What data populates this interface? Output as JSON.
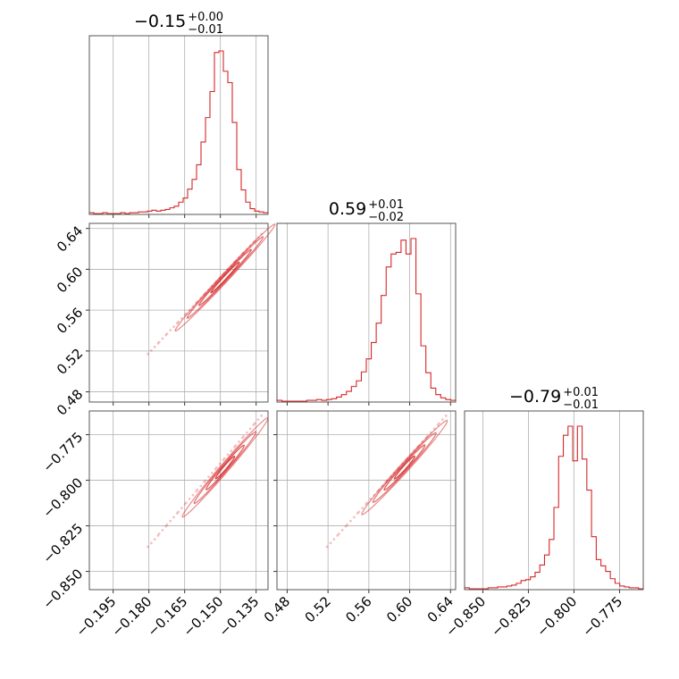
{
  "chart_data": {
    "type": "corner",
    "color": "#d62728",
    "grid": true,
    "parameters": [
      {
        "title": {
          "value": "−0.15",
          "plus": "+0.00",
          "minus": "−0.01"
        },
        "range": [
          -0.205,
          -0.13
        ],
        "ticks": [
          -0.195,
          -0.18,
          -0.165,
          -0.15,
          -0.135
        ],
        "tick_labels": [
          "−0.195",
          "−0.180",
          "−0.165",
          "−0.150",
          "−0.135"
        ],
        "hist": {
          "edges": [
            -0.205,
            -0.13
          ],
          "counts": [
            1,
            0,
            0,
            1,
            0,
            0,
            0,
            1,
            0,
            1,
            1,
            2,
            2,
            3,
            4,
            3,
            4,
            5,
            7,
            9,
            14,
            19,
            30,
            42,
            60,
            88,
            118,
            150,
            198,
            200,
            175,
            161,
            112,
            54,
            29,
            14,
            6,
            3,
            2,
            1
          ]
        }
      },
      {
        "title": {
          "value": "0.59",
          "plus": "+0.01",
          "minus": "−0.02"
        },
        "range": [
          0.47,
          0.645
        ],
        "ticks": [
          0.48,
          0.52,
          0.56,
          0.6,
          0.64
        ],
        "tick_labels": [
          "0.48",
          "0.52",
          "0.56",
          "0.60",
          "0.64"
        ],
        "hist": {
          "edges": [
            0.47,
            0.645
          ],
          "counts": [
            1,
            0,
            0,
            0,
            0,
            0,
            1,
            1,
            2,
            1,
            2,
            3,
            5,
            8,
            12,
            18,
            25,
            36,
            52,
            72,
            96,
            130,
            165,
            181,
            183,
            198,
            181,
            200,
            132,
            68,
            35,
            16,
            8,
            4,
            2,
            1
          ]
        }
      },
      {
        "title": {
          "value": "−0.79",
          "plus": "+0.01",
          "minus": "−0.01"
        },
        "range": [
          -0.86,
          -0.762
        ],
        "ticks": [
          -0.85,
          -0.825,
          -0.8,
          -0.775
        ],
        "tick_labels": [
          "−0.850",
          "−0.825",
          "−0.800",
          "−0.775"
        ],
        "hist": {
          "edges": [
            -0.86,
            -0.762
          ],
          "counts": [
            1,
            0,
            0,
            0,
            0,
            1,
            1,
            2,
            2,
            3,
            4,
            6,
            9,
            10,
            13,
            18,
            26,
            37,
            54,
            89,
            145,
            168,
            178,
            140,
            178,
            142,
            108,
            57,
            32,
            25,
            19,
            11,
            6,
            3,
            2,
            1,
            1,
            0
          ]
        }
      }
    ],
    "scatter_pairs": [
      {
        "x_param": 0,
        "y_param": 1,
        "x_start": -0.18,
        "y_start": 0.518,
        "x_end": -0.133,
        "y_end": 0.634
      },
      {
        "x_param": 0,
        "y_param": 2,
        "x_start": -0.18,
        "y_start": -0.836,
        "x_end": -0.133,
        "y_end": -0.765
      },
      {
        "x_param": 1,
        "y_param": 2,
        "x_start": 0.52,
        "y_start": -0.836,
        "x_end": 0.635,
        "y_end": -0.765
      }
    ],
    "contour_pairs": [
      {
        "x_param": 0,
        "y_param": 1,
        "center": [
          -0.148,
          0.592
        ],
        "slope": 2.48,
        "extent": [
          0.006,
          0.011,
          0.016,
          0.021
        ],
        "thickness": 0.0035
      },
      {
        "x_param": 0,
        "y_param": 2,
        "center": [
          -0.148,
          -0.793
        ],
        "slope": 1.5,
        "extent": [
          0.004,
          0.008,
          0.013,
          0.018
        ],
        "thickness": 0.0022
      },
      {
        "x_param": 1,
        "y_param": 2,
        "center": [
          0.595,
          -0.793
        ],
        "slope": 0.61,
        "extent": [
          0.01,
          0.02,
          0.031,
          0.042
        ],
        "thickness": 0.0022
      }
    ]
  }
}
